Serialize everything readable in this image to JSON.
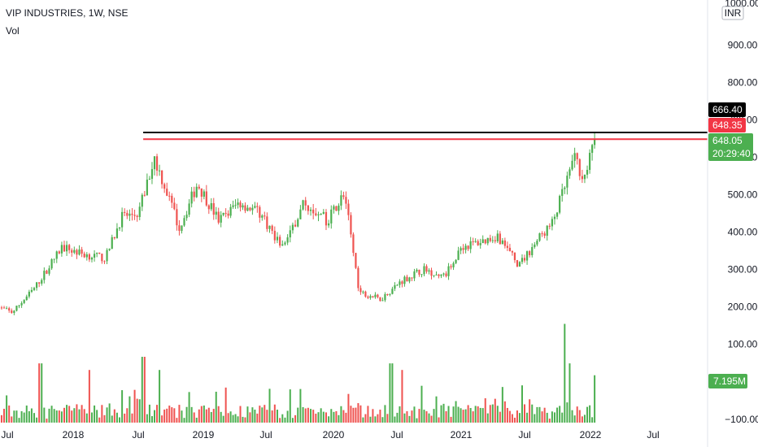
{
  "header": {
    "title": "VIP INDUSTRIES, 1W, NSE",
    "volume_label": "Vol"
  },
  "price_scale": {
    "currency": "INR",
    "top_label": "1000.00",
    "bottom_label": "−100.00"
  },
  "tags": {
    "resistance_high": "666.40",
    "resistance_low": "648.35",
    "last_price": "648.05",
    "countdown": "20:29:40",
    "volume_last": "7.195M"
  },
  "colors": {
    "up": "#26a69a",
    "candle_up": "#4caf50",
    "down": "#ef5350",
    "black_line": "#000000",
    "red_line": "#f23645",
    "price_tag": "#4caf50",
    "vol_up": "#4caf50",
    "vol_down": "#ef5350"
  },
  "chart_data": {
    "type": "candlestick",
    "interval": "1W",
    "y_axis": {
      "ticks": [
        900,
        800,
        700,
        600,
        500,
        400,
        300,
        200,
        100
      ],
      "range": [
        -110,
        1010
      ]
    },
    "x_axis": {
      "ticks": [
        "Jul",
        "2018",
        "Jul",
        "2019",
        "Jul",
        "2020",
        "Jul",
        "2021",
        "Jul",
        "2022",
        "Jul"
      ]
    },
    "horizontal_lines": [
      {
        "price": 666.4,
        "color": "black"
      },
      {
        "price": 648.35,
        "color": "red"
      }
    ],
    "price_path": [
      {
        "date": "2017-06-01",
        "close": 200
      },
      {
        "date": "2017-07-15",
        "close": 185
      },
      {
        "date": "2017-09-15",
        "close": 250
      },
      {
        "date": "2017-12-01",
        "close": 360
      },
      {
        "date": "2018-02-01",
        "close": 340
      },
      {
        "date": "2018-04-01",
        "close": 330
      },
      {
        "date": "2018-05-15",
        "close": 440
      },
      {
        "date": "2018-07-01",
        "close": 450
      },
      {
        "date": "2018-08-15",
        "close": 600
      },
      {
        "date": "2018-09-15",
        "close": 520
      },
      {
        "date": "2018-10-25",
        "close": 410
      },
      {
        "date": "2018-12-15",
        "close": 530
      },
      {
        "date": "2019-02-15",
        "close": 430
      },
      {
        "date": "2019-04-15",
        "close": 480
      },
      {
        "date": "2019-06-15",
        "close": 450
      },
      {
        "date": "2019-08-15",
        "close": 360
      },
      {
        "date": "2019-10-15",
        "close": 480
      },
      {
        "date": "2019-12-15",
        "close": 430
      },
      {
        "date": "2020-02-01",
        "close": 505
      },
      {
        "date": "2020-03-15",
        "close": 240
      },
      {
        "date": "2020-05-15",
        "close": 220
      },
      {
        "date": "2020-07-15",
        "close": 270
      },
      {
        "date": "2020-09-15",
        "close": 300
      },
      {
        "date": "2020-11-15",
        "close": 280
      },
      {
        "date": "2021-01-01",
        "close": 360
      },
      {
        "date": "2021-03-01",
        "close": 375
      },
      {
        "date": "2021-04-15",
        "close": 390
      },
      {
        "date": "2021-06-15",
        "close": 310
      },
      {
        "date": "2021-08-15",
        "close": 390
      },
      {
        "date": "2021-09-15",
        "close": 420
      },
      {
        "date": "2021-10-25",
        "close": 530
      },
      {
        "date": "2021-11-15",
        "close": 600
      },
      {
        "date": "2021-12-15",
        "close": 545
      },
      {
        "date": "2022-01-15",
        "close": 648.05
      }
    ],
    "volume_unit": "M",
    "volume_spikes": [
      {
        "date": "2017-10-01",
        "volume": 9
      },
      {
        "date": "2018-02-15",
        "volume": 8
      },
      {
        "date": "2018-07-15",
        "volume": 10
      },
      {
        "date": "2018-09-01",
        "volume": 8
      },
      {
        "date": "2020-06-15",
        "volume": 9
      },
      {
        "date": "2020-07-15",
        "volume": 8
      },
      {
        "date": "2021-10-22",
        "volume": 15
      },
      {
        "date": "2021-11-05",
        "volume": 9
      },
      {
        "date": "2022-01-15",
        "volume": 7.195
      }
    ]
  }
}
